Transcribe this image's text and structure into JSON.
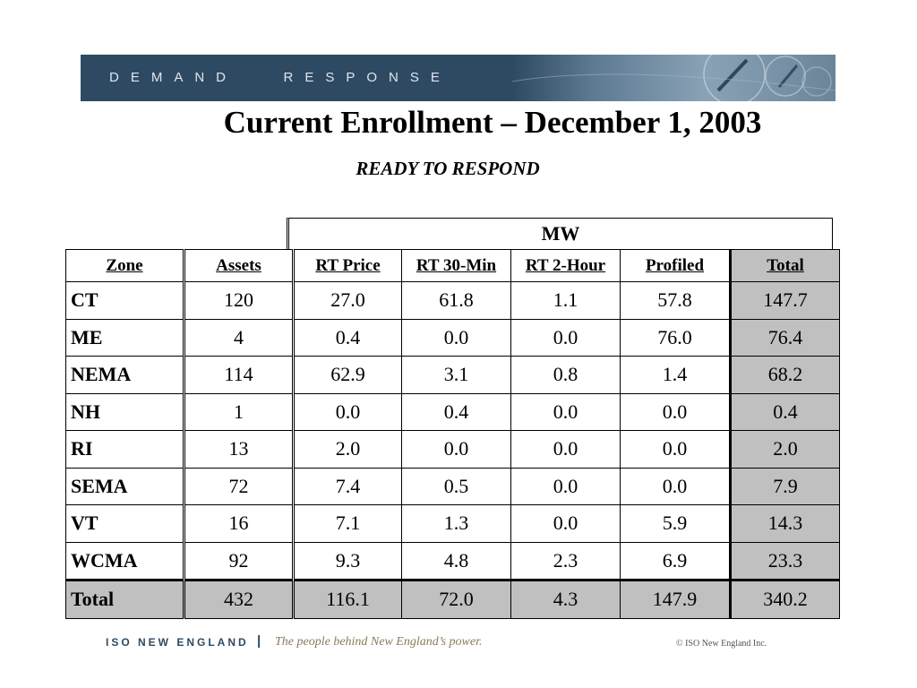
{
  "banner": {
    "text": "DEMAND   RESPONSE",
    "art_icon": "meter-dial-icon"
  },
  "title": "Current Enrollment – December 1, 2003",
  "subtitle": "READY TO RESPOND",
  "table": {
    "group_header": "MW",
    "headers": [
      "Zone",
      "Assets",
      "RT Price",
      "RT 30-Min",
      "RT 2-Hour",
      "Profiled",
      "Total"
    ],
    "rows": [
      [
        "CT",
        "120",
        "27.0",
        "61.8",
        "1.1",
        "57.8",
        "147.7"
      ],
      [
        "ME",
        "4",
        "0.4",
        "0.0",
        "0.0",
        "76.0",
        "76.4"
      ],
      [
        "NEMA",
        "114",
        "62.9",
        "3.1",
        "0.8",
        "1.4",
        "68.2"
      ],
      [
        "NH",
        "1",
        "0.0",
        "0.4",
        "0.0",
        "0.0",
        "0.4"
      ],
      [
        "RI",
        "13",
        "2.0",
        "0.0",
        "0.0",
        "0.0",
        "2.0"
      ],
      [
        "SEMA",
        "72",
        "7.4",
        "0.5",
        "0.0",
        "0.0",
        "7.9"
      ],
      [
        "VT",
        "16",
        "7.1",
        "1.3",
        "0.0",
        "5.9",
        "14.3"
      ],
      [
        "WCMA",
        "92",
        "9.3",
        "4.8",
        "2.3",
        "6.9",
        "23.3"
      ]
    ],
    "total": [
      "Total",
      "432",
      "116.1",
      "72.0",
      "4.3",
      "147.9",
      "340.2"
    ]
  },
  "footer": {
    "org": "ISO NEW ENGLAND",
    "separator": "|",
    "tagline": "The people behind New England’s power.",
    "copyright": "© ISO New England Inc."
  },
  "colors": {
    "banner": "#2e4a62",
    "total_column": "#c0c0c0",
    "tagline": "#8a7a5a"
  }
}
